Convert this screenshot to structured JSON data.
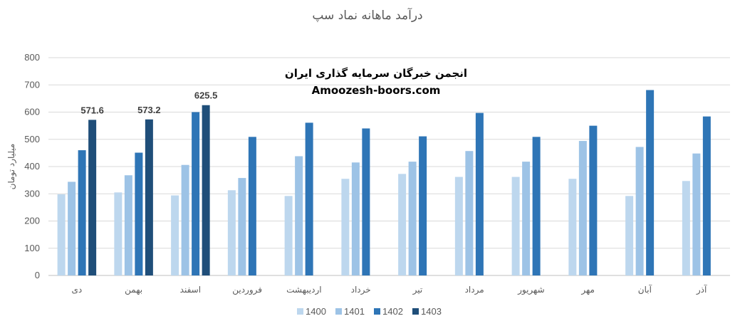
{
  "chart_data": {
    "type": "bar",
    "title": "درآمد ماهانه نماد سپ",
    "ylabel": "میلیارد تومان",
    "xlabel": "",
    "ylim": [
      0,
      800
    ],
    "yticks": [
      0,
      100,
      200,
      300,
      400,
      500,
      600,
      700,
      800
    ],
    "grid": true,
    "legend_position": "bottom",
    "categories": [
      "دی",
      "بهمن",
      "اسفند",
      "فروردین",
      "اردیبهشت",
      "خرداد",
      "تیر",
      "مرداد",
      "شهریور",
      "مهر",
      "آبان",
      "آذر"
    ],
    "series": [
      {
        "name": "1400",
        "color": "#bdd7ee",
        "values": [
          298,
          305,
          294,
          313,
          292,
          355,
          373,
          362,
          362,
          355,
          292,
          347
        ]
      },
      {
        "name": "1401",
        "color": "#9dc3e6",
        "values": [
          344,
          368,
          406,
          358,
          438,
          415,
          418,
          457,
          418,
          494,
          472,
          448
        ]
      },
      {
        "name": "1402",
        "color": "#2e75b6",
        "values": [
          460,
          451,
          600,
          509,
          561,
          540,
          511,
          597,
          509,
          550,
          681,
          584
        ]
      },
      {
        "name": "1403",
        "color": "#1f4e79",
        "values": [
          571.6,
          573.2,
          625.5,
          null,
          null,
          null,
          null,
          null,
          null,
          null,
          null,
          null
        ]
      }
    ],
    "data_labels": [
      "571.6",
      "573.2",
      "625.5"
    ],
    "watermark": {
      "line1": "انجمن خبرگان سرمایه گذاری ایران",
      "line2": "Amoozesh-boors.com"
    }
  }
}
